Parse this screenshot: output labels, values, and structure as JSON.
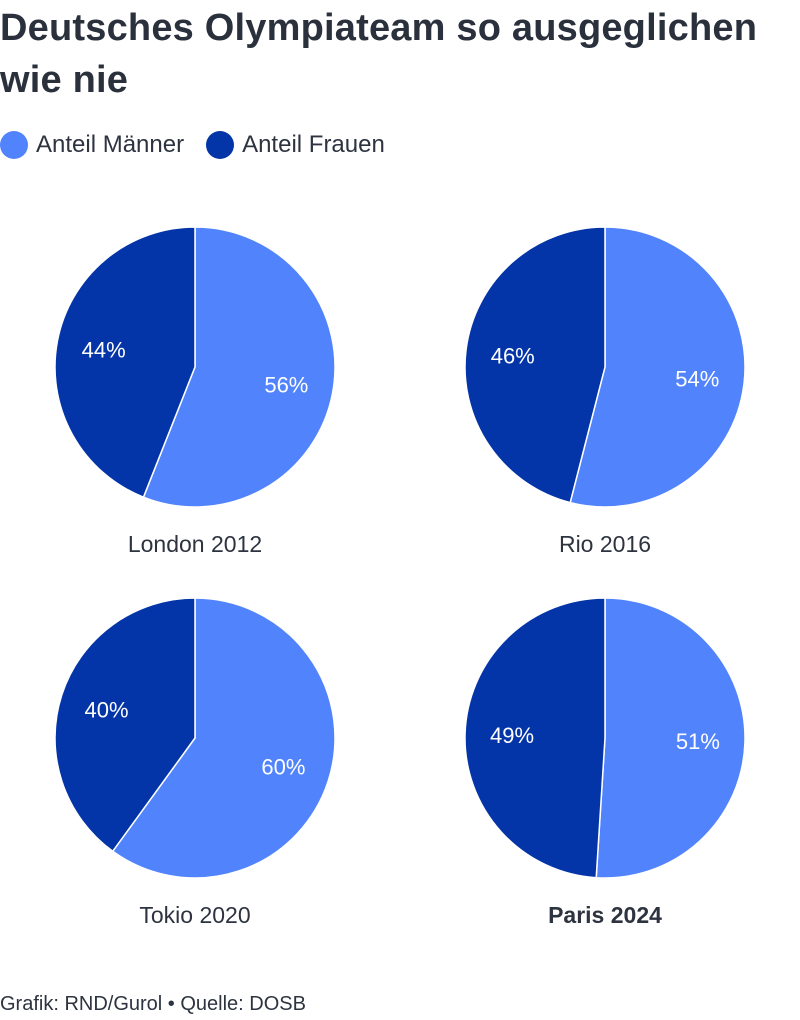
{
  "title": "Deutsches Olympiateam so ausgeglichen wie nie",
  "legend": [
    {
      "label": "Anteil Männer",
      "color": "#5083fc"
    },
    {
      "label": "Anteil Frauen",
      "color": "#0335a8"
    }
  ],
  "chart_data": [
    {
      "type": "pie",
      "title": "London 2012",
      "bold": false,
      "slices": [
        {
          "name": "Anteil Männer",
          "value": 56,
          "label": "56%"
        },
        {
          "name": "Anteil Frauen",
          "value": 44,
          "label": "44%"
        }
      ]
    },
    {
      "type": "pie",
      "title": "Rio 2016",
      "bold": false,
      "slices": [
        {
          "name": "Anteil Männer",
          "value": 54,
          "label": "54%"
        },
        {
          "name": "Anteil Frauen",
          "value": 46,
          "label": "46%"
        }
      ]
    },
    {
      "type": "pie",
      "title": "Tokio 2020",
      "bold": false,
      "slices": [
        {
          "name": "Anteil Männer",
          "value": 60,
          "label": "60%"
        },
        {
          "name": "Anteil Frauen",
          "value": 40,
          "label": "40%"
        }
      ]
    },
    {
      "type": "pie",
      "title": "Paris 2024",
      "bold": true,
      "slices": [
        {
          "name": "Anteil Männer",
          "value": 51,
          "label": "51%"
        },
        {
          "name": "Anteil Frauen",
          "value": 49,
          "label": "49%"
        }
      ]
    }
  ],
  "footer": "Grafik: RND/Gurol • Quelle: DOSB"
}
